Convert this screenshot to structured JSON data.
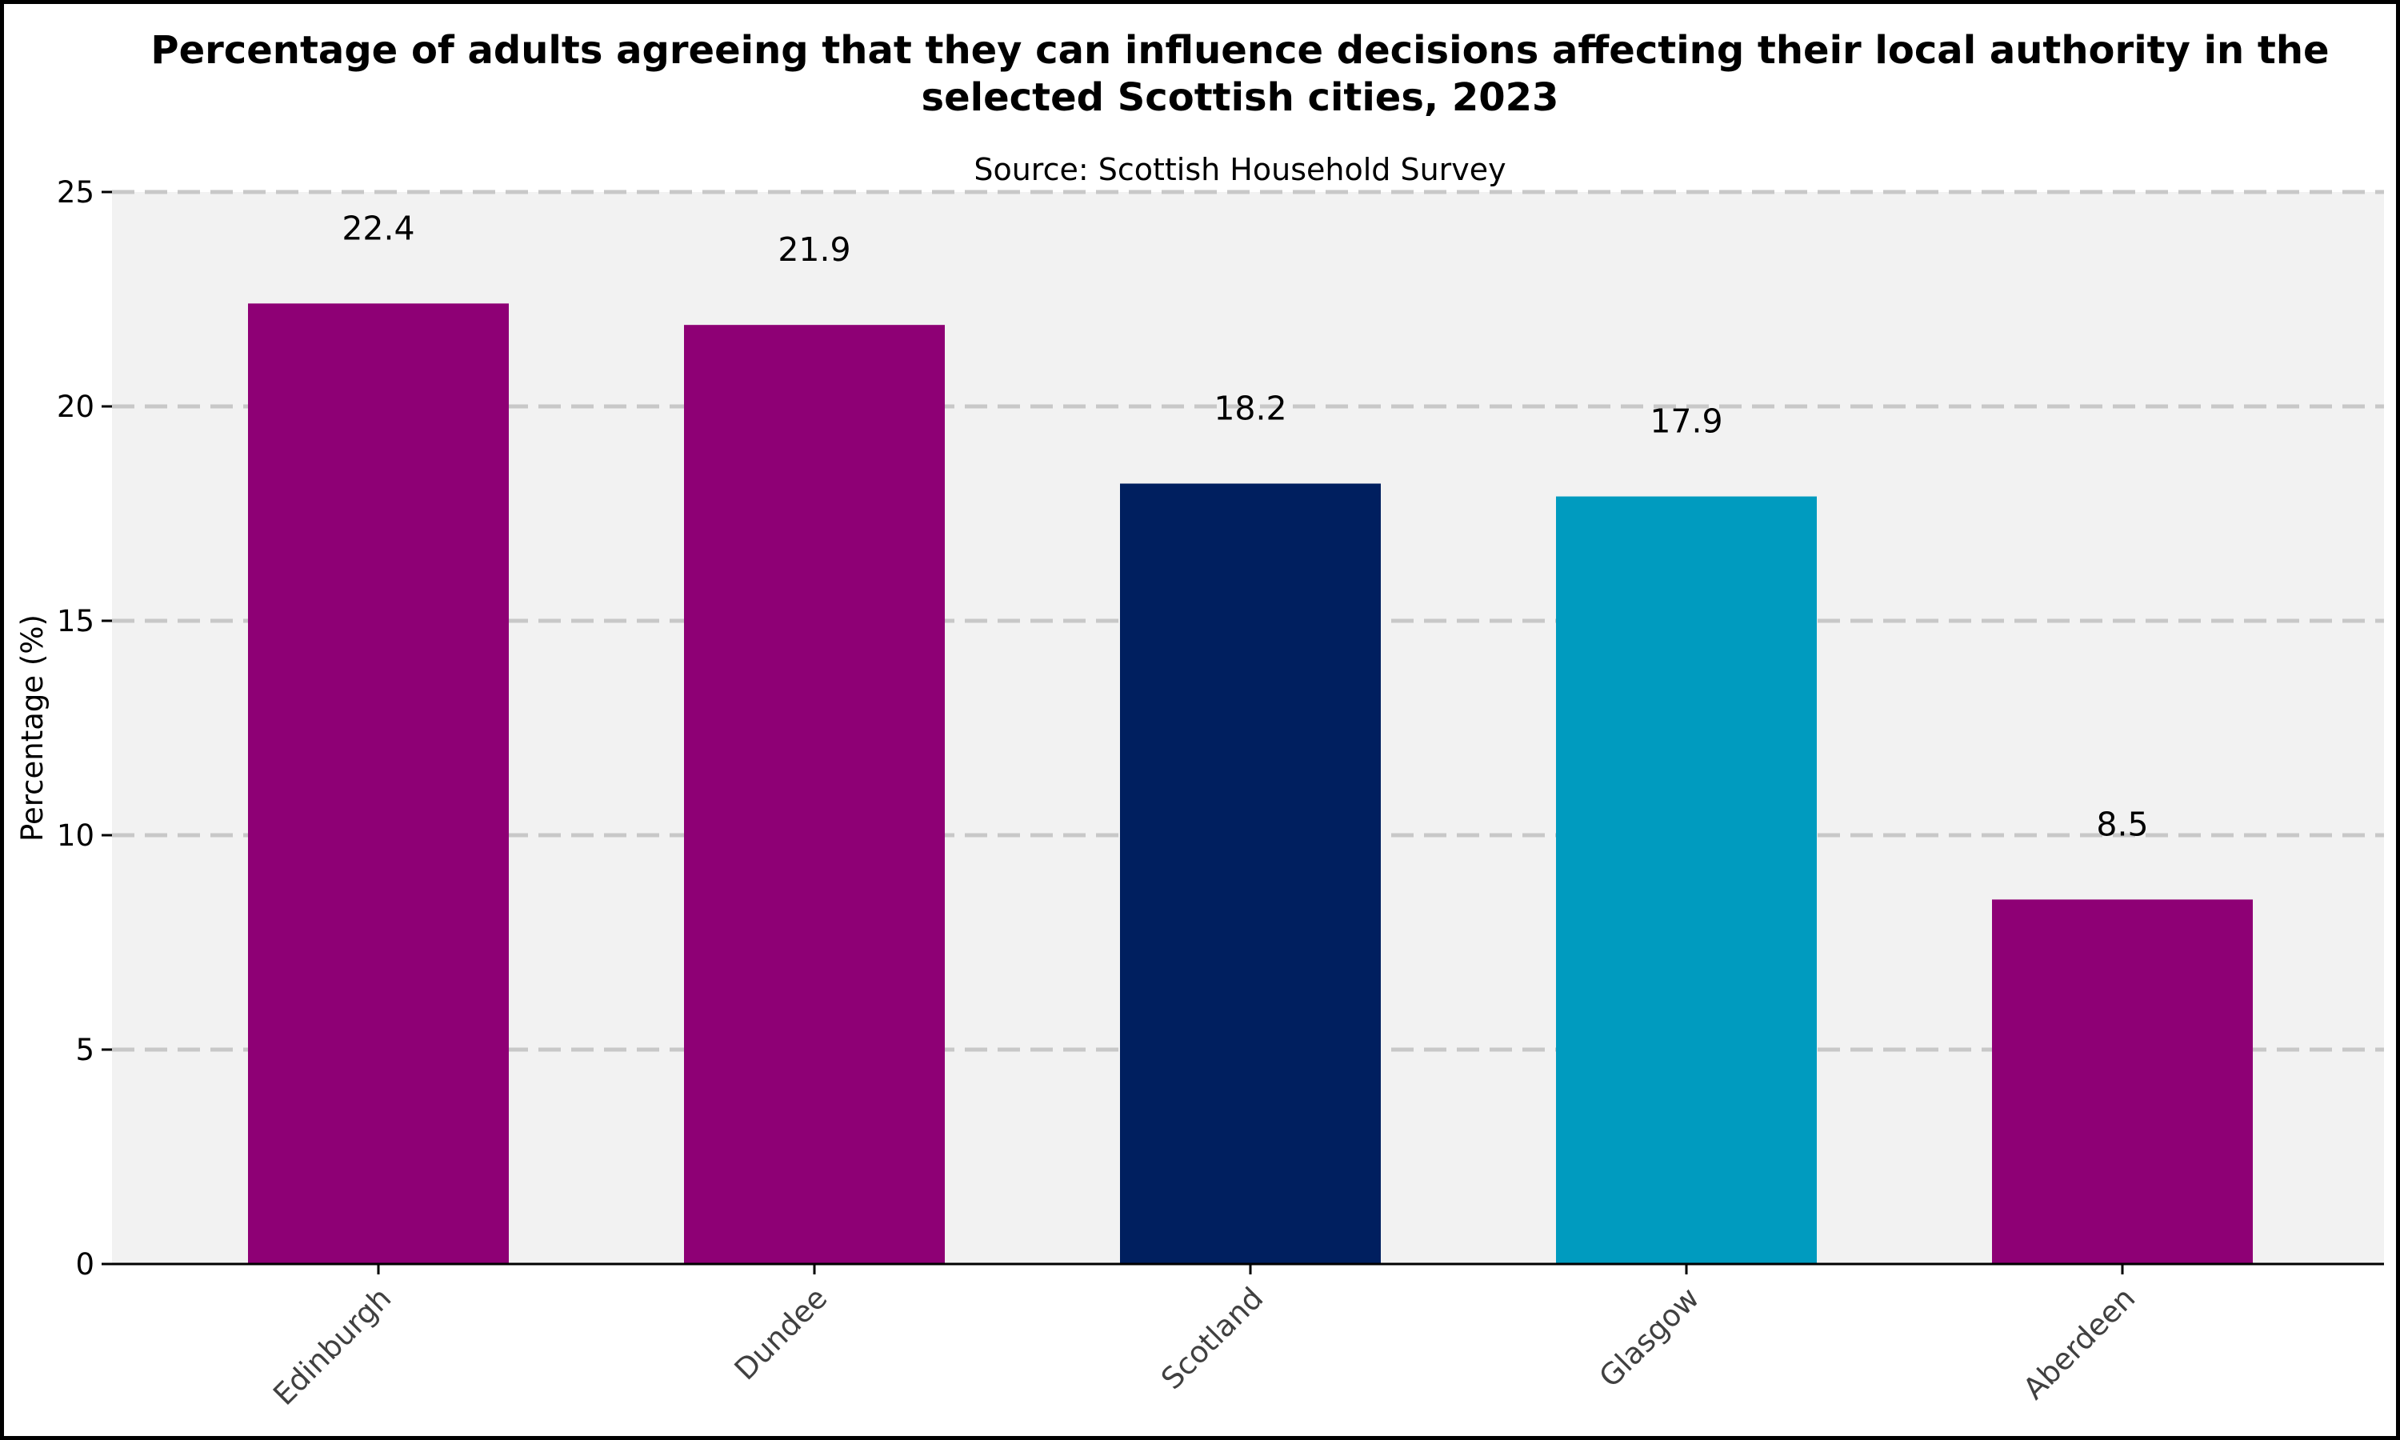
{
  "chart_data": {
    "type": "bar",
    "title": "Percentage of adults agreeing that they can influence decisions affecting their local authority in the selected Scottish cities, 2023",
    "subtitle": "Source: Scottish Household Survey",
    "xlabel": "",
    "ylabel": "Percentage (%)",
    "ylim": [
      0,
      25
    ],
    "yticks": [
      0,
      5,
      10,
      15,
      20,
      25
    ],
    "grid": "horizontal dashed",
    "categories": [
      "Edinburgh",
      "Dundee",
      "Scotland",
      "Glasgow",
      "Aberdeen"
    ],
    "values": [
      22.4,
      21.9,
      18.2,
      17.9,
      8.5
    ],
    "value_labels": [
      "22.4",
      "21.9",
      "18.2",
      "17.9",
      "8.5"
    ],
    "colors": [
      "#8e0075",
      "#8e0075",
      "#001f5f",
      "#009bbf",
      "#8e0075"
    ],
    "plot_background": "#f2f2f2",
    "grid_color": "#c8c8c8"
  }
}
